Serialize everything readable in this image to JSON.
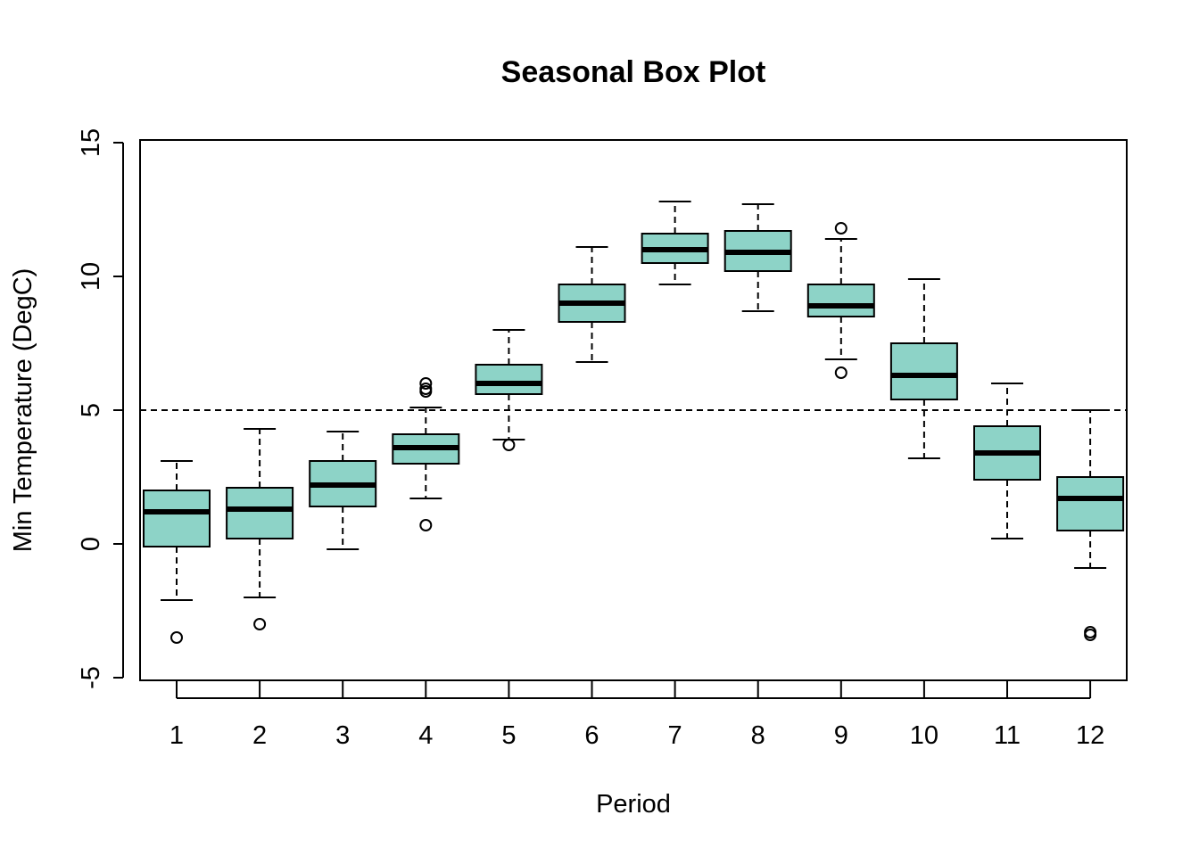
{
  "chart_data": {
    "type": "boxplot",
    "title": "Seasonal Box Plot",
    "xlabel": "Period",
    "ylabel": "Min Temperature (DegC)",
    "ylim": [
      -5,
      15
    ],
    "yticks": [
      -5,
      0,
      5,
      10,
      15
    ],
    "reference_line": 5,
    "box_color": "#8DD3C7",
    "categories": [
      "1",
      "2",
      "3",
      "4",
      "5",
      "6",
      "7",
      "8",
      "9",
      "10",
      "11",
      "12"
    ],
    "boxes": [
      {
        "period": "1",
        "whisker_low": -2.1,
        "q1": -0.1,
        "median": 1.2,
        "q3": 2.0,
        "whisker_high": 3.1,
        "outliers": [
          -3.5
        ]
      },
      {
        "period": "2",
        "whisker_low": -2.0,
        "q1": 0.2,
        "median": 1.3,
        "q3": 2.1,
        "whisker_high": 4.3,
        "outliers": [
          -3.0
        ]
      },
      {
        "period": "3",
        "whisker_low": -0.2,
        "q1": 1.4,
        "median": 2.2,
        "q3": 3.1,
        "whisker_high": 4.2,
        "outliers": []
      },
      {
        "period": "4",
        "whisker_low": 1.7,
        "q1": 3.0,
        "median": 3.6,
        "q3": 4.1,
        "whisker_high": 5.1,
        "outliers": [
          0.7,
          5.7,
          5.8,
          6.0
        ]
      },
      {
        "period": "5",
        "whisker_low": 3.9,
        "q1": 5.6,
        "median": 6.0,
        "q3": 6.7,
        "whisker_high": 8.0,
        "outliers": [
          3.7
        ]
      },
      {
        "period": "6",
        "whisker_low": 6.8,
        "q1": 8.3,
        "median": 9.0,
        "q3": 9.7,
        "whisker_high": 11.1,
        "outliers": []
      },
      {
        "period": "7",
        "whisker_low": 9.7,
        "q1": 10.5,
        "median": 11.0,
        "q3": 11.6,
        "whisker_high": 12.8,
        "outliers": []
      },
      {
        "period": "8",
        "whisker_low": 8.7,
        "q1": 10.2,
        "median": 10.9,
        "q3": 11.7,
        "whisker_high": 12.7,
        "outliers": []
      },
      {
        "period": "9",
        "whisker_low": 6.9,
        "q1": 8.5,
        "median": 8.9,
        "q3": 9.7,
        "whisker_high": 11.4,
        "outliers": [
          6.4,
          11.8
        ]
      },
      {
        "period": "10",
        "whisker_low": 3.2,
        "q1": 5.4,
        "median": 6.3,
        "q3": 7.5,
        "whisker_high": 9.9,
        "outliers": []
      },
      {
        "period": "11",
        "whisker_low": 0.2,
        "q1": 2.4,
        "median": 3.4,
        "q3": 4.4,
        "whisker_high": 6.0,
        "outliers": []
      },
      {
        "period": "12",
        "whisker_low": -0.9,
        "q1": 0.5,
        "median": 1.7,
        "q3": 2.5,
        "whisker_high": 5.0,
        "outliers": [
          -3.3,
          -3.4
        ]
      }
    ]
  }
}
